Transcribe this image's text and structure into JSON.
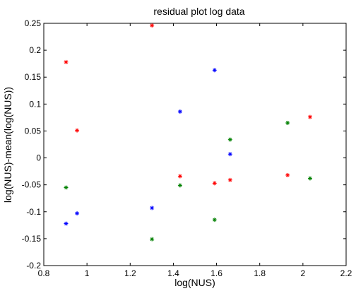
{
  "chart_data": {
    "type": "scatter",
    "title": "residual plot log data",
    "xlabel": "log(NUS)",
    "ylabel": "log(NUS)-mean(log(NUS))",
    "xlim": [
      0.8,
      2.2
    ],
    "ylim": [
      -0.2,
      0.25
    ],
    "xticks": [
      0.8,
      1,
      1.2,
      1.4,
      1.6,
      1.8,
      2,
      2.2
    ],
    "yticks": [
      -0.2,
      -0.15,
      -0.1,
      -0.05,
      0,
      0.05,
      0.1,
      0.15,
      0.2,
      0.25
    ],
    "grid": false,
    "marker": "*",
    "series": [
      {
        "color": "#ff0000",
        "points": [
          {
            "x": 0.903,
            "y": 0.178
          },
          {
            "x": 0.954,
            "y": 0.051
          },
          {
            "x": 1.301,
            "y": 0.246
          },
          {
            "x": 1.431,
            "y": -0.034
          },
          {
            "x": 1.591,
            "y": -0.047
          },
          {
            "x": 1.663,
            "y": -0.041
          },
          {
            "x": 1.929,
            "y": -0.032
          },
          {
            "x": 2.033,
            "y": 0.076
          }
        ]
      },
      {
        "color": "#0000ff",
        "points": [
          {
            "x": 0.903,
            "y": -0.122
          },
          {
            "x": 0.954,
            "y": -0.103
          },
          {
            "x": 1.301,
            "y": -0.093
          },
          {
            "x": 1.431,
            "y": 0.086
          },
          {
            "x": 1.591,
            "y": 0.163
          },
          {
            "x": 1.663,
            "y": 0.007
          }
        ]
      },
      {
        "color": "#008000",
        "points": [
          {
            "x": 0.903,
            "y": -0.055
          },
          {
            "x": 1.301,
            "y": -0.151
          },
          {
            "x": 1.431,
            "y": -0.051
          },
          {
            "x": 1.591,
            "y": -0.115
          },
          {
            "x": 1.663,
            "y": 0.034
          },
          {
            "x": 1.929,
            "y": 0.065
          },
          {
            "x": 2.033,
            "y": -0.038
          }
        ]
      }
    ]
  }
}
